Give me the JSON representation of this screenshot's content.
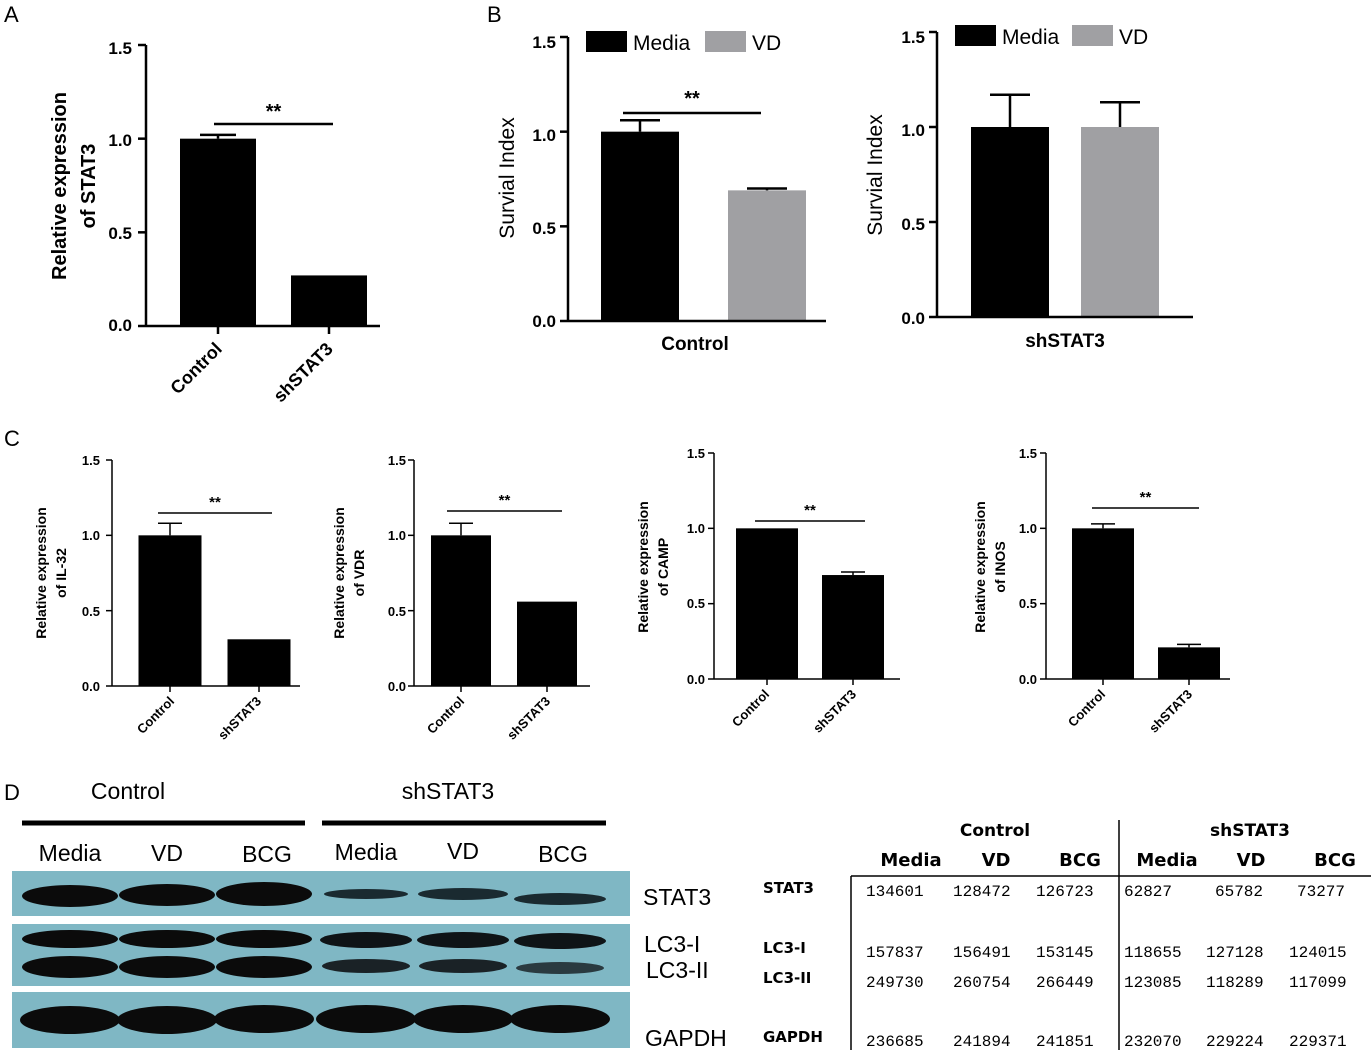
{
  "panels": {
    "A": {
      "letter": "A",
      "chart_data": {
        "type": "bar",
        "categories": [
          "Control",
          "shSTAT3"
        ],
        "values": [
          1.0,
          0.27
        ],
        "errors": [
          0.02,
          0.0
        ],
        "ylabel": "Relative expression of STAT3",
        "ylabel_lines": [
          "Relative expression",
          "of STAT3"
        ],
        "ylim": [
          0,
          1.5
        ],
        "yticks": [
          "0.0",
          "0.5",
          "1.0",
          "1.5"
        ],
        "significance": "**"
      }
    },
    "B": {
      "letter": "B",
      "legend": {
        "series": [
          "Media",
          "VD"
        ]
      },
      "colors": {
        "Media": "#000000",
        "VD": "#a0a0a3"
      },
      "chart_data": [
        {
          "type": "bar",
          "group": "Control",
          "series": [
            {
              "name": "Media",
              "values": [
                1.0
              ],
              "errors": [
                0.06
              ]
            },
            {
              "name": "VD",
              "values": [
                0.69
              ],
              "errors": [
                0.01
              ]
            }
          ],
          "ylabel": "Survial Index",
          "ylim": [
            0,
            1.5
          ],
          "yticks": [
            "0.0",
            "0.5",
            "1.0",
            "1.5"
          ],
          "significance": "**"
        },
        {
          "type": "bar",
          "group": "shSTAT3",
          "series": [
            {
              "name": "Media",
              "values": [
                1.0
              ],
              "errors": [
                0.17
              ]
            },
            {
              "name": "VD",
              "values": [
                1.0
              ],
              "errors": [
                0.13
              ]
            }
          ],
          "ylabel": "Survial Index",
          "ylim": [
            0,
            1.5
          ],
          "yticks": [
            "0.0",
            "0.5",
            "1.0",
            "1.5"
          ],
          "significance": ""
        }
      ]
    },
    "C": {
      "letter": "C",
      "chart_data": [
        {
          "type": "bar",
          "categories": [
            "Control",
            "shSTAT3"
          ],
          "values": [
            1.0,
            0.31
          ],
          "errors": [
            0.08,
            0.0
          ],
          "ylabel_lines": [
            "Relative expression",
            "of IL-32"
          ],
          "ylim": [
            0,
            1.5
          ],
          "yticks": [
            "0.0",
            "0.5",
            "1.0",
            "1.5"
          ],
          "significance": "**"
        },
        {
          "type": "bar",
          "categories": [
            "Control",
            "shSTAT3"
          ],
          "values": [
            1.0,
            0.56
          ],
          "errors": [
            0.08,
            0.0
          ],
          "ylabel_lines": [
            "Relative expression",
            "of VDR"
          ],
          "ylim": [
            0,
            1.5
          ],
          "yticks": [
            "0.0",
            "0.5",
            "1.0",
            "1.5"
          ],
          "significance": "**"
        },
        {
          "type": "bar",
          "categories": [
            "Control",
            "shSTAT3"
          ],
          "values": [
            1.0,
            0.69
          ],
          "errors": [
            0.0,
            0.02
          ],
          "ylabel_lines": [
            "Relative expression",
            "of CAMP"
          ],
          "ylim": [
            0,
            1.5
          ],
          "yticks": [
            "0.0",
            "0.5",
            "1.0",
            "1.5"
          ],
          "significance": "**"
        },
        {
          "type": "bar",
          "categories": [
            "Control",
            "shSTAT3"
          ],
          "values": [
            1.0,
            0.21
          ],
          "errors": [
            0.03,
            0.02
          ],
          "ylabel_lines": [
            "Relative expression",
            "of INOS"
          ],
          "ylim": [
            0,
            1.5
          ],
          "yticks": [
            "0.0",
            "0.5",
            "1.0",
            "1.5"
          ],
          "significance": "**"
        }
      ]
    },
    "D": {
      "letter": "D",
      "blot": {
        "groups": [
          "Control",
          "shSTAT3"
        ],
        "lanes": [
          "Media",
          "VD",
          "BCG",
          "Media",
          "VD",
          "BCG"
        ],
        "band_labels": [
          "STAT3",
          "LC3-I",
          "LC3-II",
          "GAPDH"
        ],
        "background": "#7fb7c4"
      },
      "table": {
        "groups": [
          "Control",
          "shSTAT3"
        ],
        "columns": [
          "Media",
          "VD",
          "BCG",
          "Media",
          "VD",
          "BCG"
        ],
        "rows": [
          {
            "label": "STAT3",
            "values": [
              "134601",
              "128472",
              "126723",
              "62827",
              "65782",
              "73277"
            ]
          },
          {
            "label": "LC3-I",
            "values": [
              "157837",
              "156491",
              "153145",
              "118655",
              "127128",
              "124015"
            ]
          },
          {
            "label": "LC3-II",
            "values": [
              "249730",
              "260754",
              "266449",
              "123085",
              "118289",
              "117099"
            ]
          },
          {
            "label": "GAPDH",
            "values": [
              "236685",
              "241894",
              "241851",
              "232070",
              "229224",
              "229371"
            ]
          }
        ]
      }
    }
  }
}
